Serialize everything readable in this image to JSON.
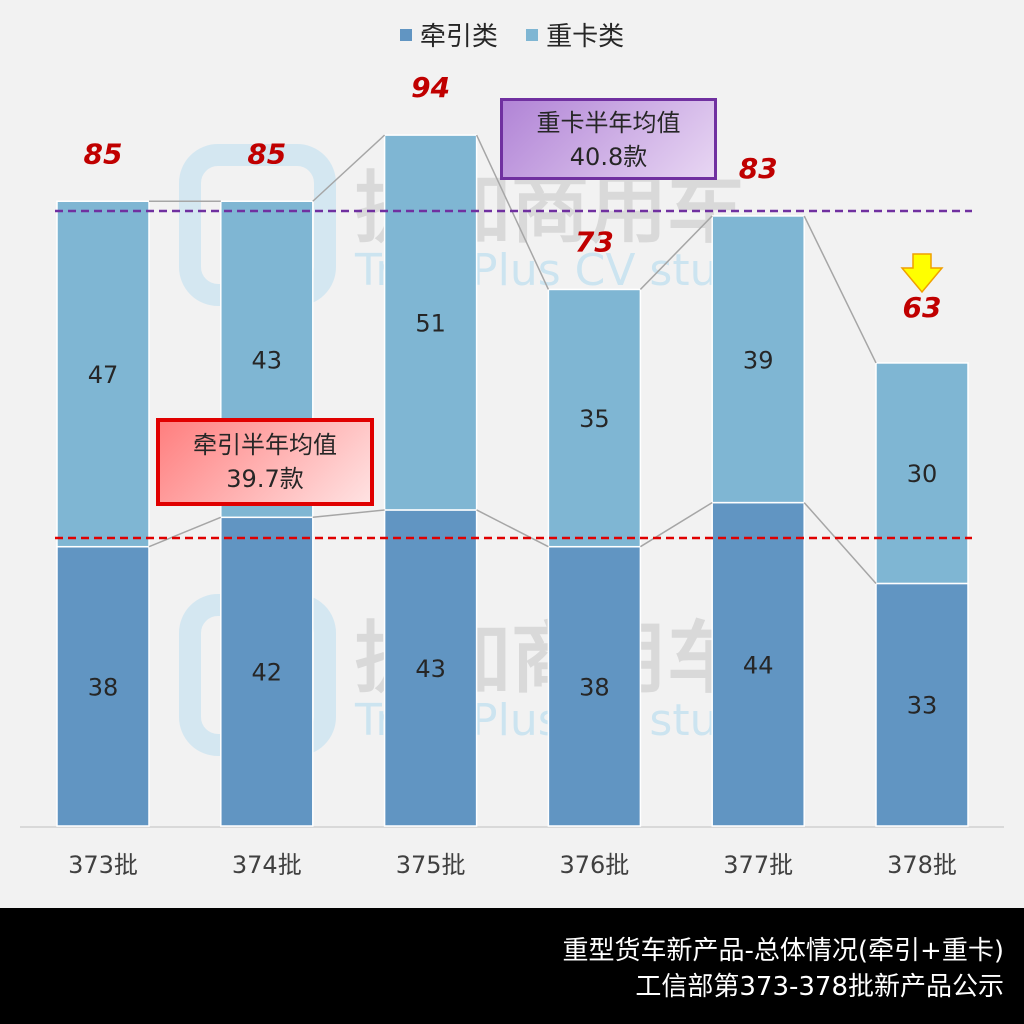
{
  "legend": [
    {
      "label": "牵引类",
      "color": "#6195c2"
    },
    {
      "label": "重卡类",
      "color": "#7fb6d3"
    }
  ],
  "chart_data": {
    "type": "bar",
    "stacked": true,
    "categories": [
      "373批",
      "374批",
      "375批",
      "376批",
      "377批",
      "378批"
    ],
    "series": [
      {
        "name": "牵引类",
        "values": [
          38,
          42,
          43,
          38,
          44,
          33
        ],
        "color": "#6195c2"
      },
      {
        "name": "重卡类",
        "values": [
          47,
          43,
          51,
          35,
          39,
          30
        ],
        "color": "#7fb6d3"
      }
    ],
    "totals": [
      85,
      85,
      94,
      73,
      83,
      63
    ],
    "reference_lines": [
      {
        "name": "牵引半年均值",
        "value": 39.7,
        "color": "#e00000",
        "style": "dashed"
      },
      {
        "name": "重卡半年均值",
        "value": 40.8,
        "color": "#7030a0",
        "style": "dashed"
      }
    ],
    "annotations": [
      {
        "text": "牵引半年均值\n39.7款"
      },
      {
        "text": "重卡半年均值\n40.8款"
      },
      {
        "text": "down-arrow",
        "category": "378批"
      }
    ],
    "title": "重型货车新产品-总体情况(牵引+重卡)",
    "subtitle": "工信部第373-378批新产品公示",
    "xlabel": "",
    "ylabel": "",
    "grid": false,
    "legend_position": "top"
  },
  "callouts": {
    "heavy_title": "重卡半年均值",
    "heavy_value": "40.8款",
    "tractor_title": "牵引半年均值",
    "tractor_value": "39.7款"
  },
  "watermark": {
    "cn": "提加商用车",
    "en": "TruckPlus CV studio"
  },
  "footer": {
    "line1": "重型货车新产品-总体情况(牵引+重卡)",
    "line2": "工信部第373-378批新产品公示"
  }
}
